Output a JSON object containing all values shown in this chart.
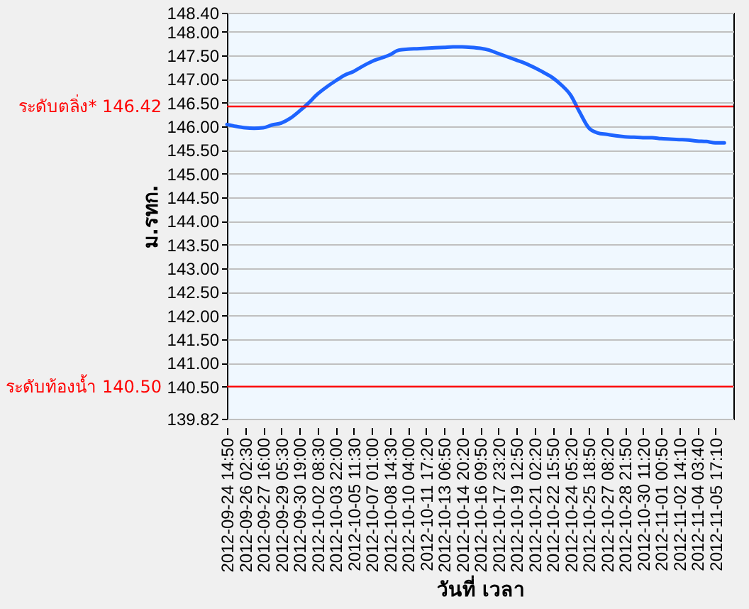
{
  "chart_data": {
    "type": "line",
    "xlabel": "วันที่ เวลา",
    "ylabel": "ม.รทก.",
    "categories": [
      "2012-09-24 14:50",
      null,
      "2012-09-26 02:30",
      null,
      "2012-09-27 16:00",
      null,
      "2012-09-29 05:30",
      null,
      "2012-09-30 19:00",
      null,
      "2012-10-02 08:30",
      null,
      "2012-10-03 22:00",
      null,
      "2012-10-05 11:30",
      null,
      "2012-10-07 01:00",
      null,
      "2012-10-08 14:30",
      null,
      "2012-10-10 04:00",
      null,
      "2012-10-11 17:20",
      null,
      "2012-10-13 06:50",
      null,
      "2012-10-14 20:20",
      null,
      "2012-10-16 09:50",
      null,
      "2012-10-17 23:20",
      null,
      "2012-10-19 12:50",
      null,
      "2012-10-21 02:20",
      null,
      "2012-10-22 15:50",
      null,
      "2012-10-24 05:20",
      null,
      "2012-10-25 18:50",
      null,
      "2012-10-27 08:20",
      null,
      "2012-10-28 21:50",
      null,
      "2012-10-30 11:20",
      null,
      "2012-11-01 00:50",
      null,
      "2012-11-02 14:10",
      null,
      "2012-11-04 03:40",
      null,
      "2012-11-05 17:10",
      null
    ],
    "series": [
      {
        "color": "#1e64ff",
        "values": [
          146.04,
          146.0,
          145.97,
          145.96,
          145.97,
          146.03,
          146.07,
          146.17,
          146.32,
          146.49,
          146.68,
          146.83,
          146.96,
          147.08,
          147.16,
          147.27,
          147.37,
          147.44,
          147.51,
          147.61,
          147.63,
          147.64,
          147.65,
          147.66,
          147.67,
          147.68,
          147.68,
          147.67,
          147.65,
          147.61,
          147.54,
          147.47,
          147.4,
          147.33,
          147.24,
          147.14,
          147.03,
          146.87,
          146.66,
          146.3,
          145.97,
          145.86,
          145.83,
          145.8,
          145.78,
          145.77,
          145.76,
          145.76,
          145.74,
          145.73,
          145.72,
          145.71,
          145.69,
          145.68,
          145.65,
          145.65
        ]
      }
    ],
    "ylim": [
      139.82,
      148.4
    ],
    "yticks": [
      {
        "value": 148.4,
        "label": "148.40"
      },
      {
        "value": 148,
        "label": "148.00"
      },
      {
        "value": 147.5,
        "label": "147.50"
      },
      {
        "value": 147,
        "label": "147.00"
      },
      {
        "value": 146.5,
        "label": "146.50"
      },
      {
        "value": 146,
        "label": "146.00"
      },
      {
        "value": 145.5,
        "label": "145.50"
      },
      {
        "value": 145,
        "label": "145.00"
      },
      {
        "value": 144.5,
        "label": "144.50"
      },
      {
        "value": 144,
        "label": "144.00"
      },
      {
        "value": 143.5,
        "label": "143.50"
      },
      {
        "value": 143,
        "label": "143.00"
      },
      {
        "value": 142.5,
        "label": "142.50"
      },
      {
        "value": 142,
        "label": "142.00"
      },
      {
        "value": 141.5,
        "label": "141.50"
      },
      {
        "value": 141,
        "label": "141.00"
      },
      {
        "value": 140.5,
        "label": "140.50"
      },
      {
        "value": 139.82,
        "label": "139.82"
      }
    ],
    "grid": "y",
    "ref_lines": [
      {
        "axis": "y",
        "value": 146.42,
        "label": "ระดับตลิ่ง* 146.42",
        "color": "#ff0000"
      },
      {
        "axis": "y",
        "value": 140.5,
        "label": "ระดับท้องน้ำ 140.50",
        "color": "#ff0000"
      }
    ]
  }
}
